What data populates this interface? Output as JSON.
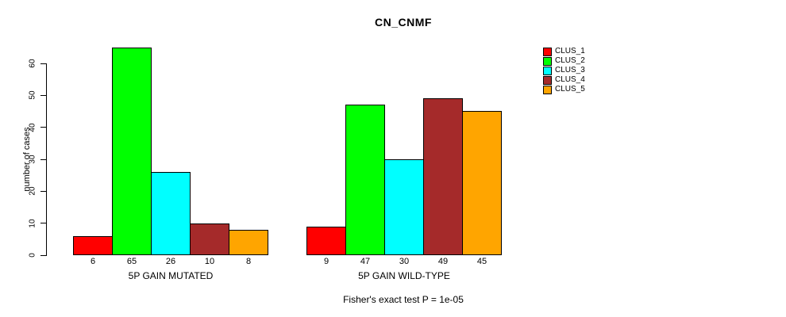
{
  "chart_data": {
    "type": "bar",
    "title": "CN_CNMF",
    "ylabel": "number of cases",
    "xlabel": "",
    "ylim": [
      0,
      60
    ],
    "yticks": [
      0,
      10,
      20,
      30,
      40,
      50,
      60
    ],
    "grid": false,
    "legend_position": "right",
    "categories": [
      "5P GAIN MUTATED",
      "5P GAIN WILD-TYPE"
    ],
    "series": [
      {
        "name": "CLUS_1",
        "color": "#FF0000",
        "values": [
          6,
          9
        ]
      },
      {
        "name": "CLUS_2",
        "color": "#00FF00",
        "values": [
          65,
          47
        ]
      },
      {
        "name": "CLUS_3",
        "color": "#00FFFF",
        "values": [
          26,
          30
        ]
      },
      {
        "name": "CLUS_4",
        "color": "#A52A2A",
        "values": [
          10,
          49
        ]
      },
      {
        "name": "CLUS_5",
        "color": "#FFA500",
        "values": [
          8,
          45
        ]
      }
    ],
    "bar_value_labels": {
      "5P GAIN MUTATED": [
        6,
        65,
        26,
        10,
        8
      ],
      "5P GAIN WILD-TYPE": [
        9,
        47,
        30,
        49,
        45
      ]
    },
    "annotation": "Fisher's exact test P = 1e-05"
  }
}
